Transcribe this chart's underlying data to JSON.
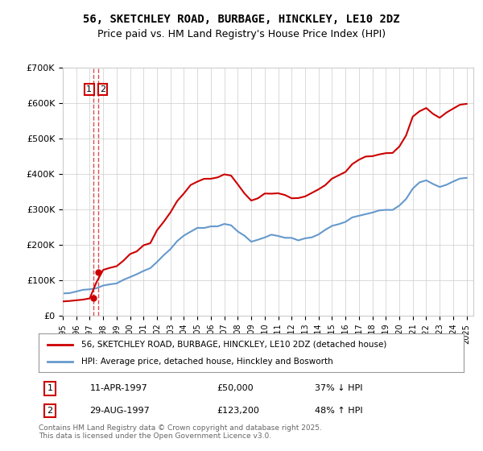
{
  "title": "56, SKETCHLEY ROAD, BURBAGE, HINCKLEY, LE10 2DZ",
  "subtitle": "Price paid vs. HM Land Registry's House Price Index (HPI)",
  "legend_line1": "56, SKETCHLEY ROAD, BURBAGE, HINCKLEY, LE10 2DZ (detached house)",
  "legend_line2": "HPI: Average price, detached house, Hinckley and Bosworth",
  "sale1_label": "1",
  "sale1_date": "11-APR-1997",
  "sale1_price": "£50,000",
  "sale1_hpi": "37% ↓ HPI",
  "sale2_label": "2",
  "sale2_date": "29-AUG-1997",
  "sale2_price": "£123,200",
  "sale2_hpi": "48% ↑ HPI",
  "footnote": "Contains HM Land Registry data © Crown copyright and database right 2025.\nThis data is licensed under the Open Government Licence v3.0.",
  "ylim": [
    0,
    700000
  ],
  "yticks": [
    0,
    100000,
    200000,
    300000,
    400000,
    500000,
    600000,
    700000
  ],
  "ytick_labels": [
    "£0",
    "£100K",
    "£200K",
    "£300K",
    "£400K",
    "£500K",
    "£600K",
    "£700K"
  ],
  "xlim_start": 1995.0,
  "xlim_end": 2025.5,
  "red_color": "#cc0000",
  "blue_color": "#6699cc",
  "dashed_red_color": "#cc0000",
  "background_color": "#ffffff",
  "grid_color": "#cccccc",
  "sale1_year": 1997.27,
  "sale1_value": 50000,
  "sale2_year": 1997.65,
  "sale2_value": 123200
}
